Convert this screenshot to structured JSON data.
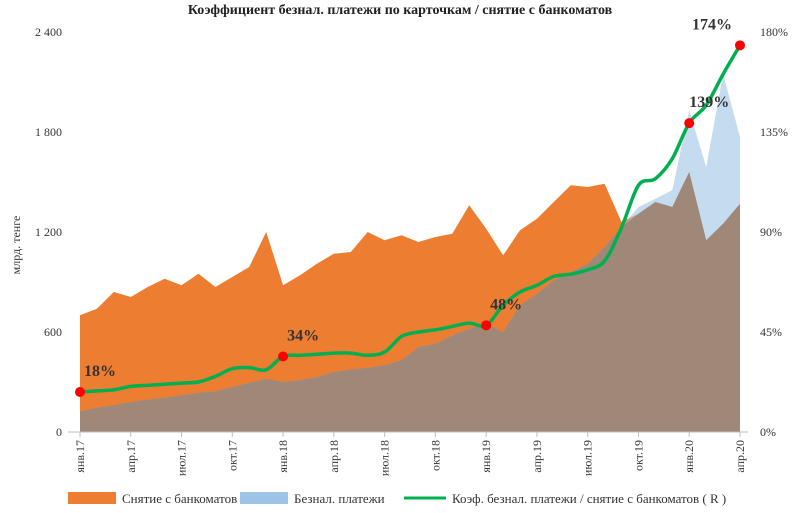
{
  "chart_data": {
    "type": "area",
    "title": "Коэффициент безнал. платежи по карточкам / снятие с банкоматов",
    "ylabel": "млрд. тенге",
    "ylim": [
      0,
      2400
    ],
    "y2lim": [
      0,
      180
    ],
    "y_ticks": [
      "0",
      "600",
      "1 200",
      "1 800",
      "2 400"
    ],
    "y2_ticks": [
      "0%",
      "45%",
      "90%",
      "135%",
      "180%"
    ],
    "x_ticks": [
      "янв.17",
      "апр.17",
      "июл.17",
      "окт.17",
      "янв.18",
      "апр.18",
      "июл.18",
      "окт.18",
      "янв.19",
      "апр.19",
      "июл.19",
      "окт.19",
      "янв.20",
      "апр.20"
    ],
    "x": [
      "янв.17",
      "фев.17",
      "мар.17",
      "апр.17",
      "май.17",
      "июн.17",
      "июл.17",
      "авг.17",
      "сен.17",
      "окт.17",
      "ноя.17",
      "дек.17",
      "янв.18",
      "фев.18",
      "мар.18",
      "апр.18",
      "май.18",
      "июн.18",
      "июл.18",
      "авг.18",
      "сен.18",
      "окт.18",
      "ноя.18",
      "дек.18",
      "янв.19",
      "фев.19",
      "мар.19",
      "апр.19",
      "май.19",
      "июн.19",
      "июл.19",
      "авг.19",
      "сен.19",
      "окт.19",
      "ноя.19",
      "дек.19",
      "янв.20",
      "фев.20",
      "мар.20",
      "апр.20"
    ],
    "series": [
      {
        "name": "Снятие с банкоматов",
        "axis": "left",
        "color": "#ed7d31",
        "values": [
          700,
          740,
          840,
          810,
          870,
          920,
          880,
          950,
          870,
          930,
          990,
          1200,
          880,
          940,
          1010,
          1070,
          1080,
          1200,
          1150,
          1180,
          1140,
          1170,
          1190,
          1360,
          1220,
          1060,
          1210,
          1280,
          1380,
          1480,
          1470,
          1490,
          1260,
          1310,
          1380,
          1350,
          1560,
          1150,
          1250,
          1370
        ]
      },
      {
        "name": "Безнал. платежи",
        "axis": "left",
        "color": "#9dc3e6",
        "values": [
          125,
          145,
          160,
          180,
          195,
          205,
          220,
          235,
          245,
          270,
          295,
          320,
          300,
          310,
          330,
          360,
          375,
          385,
          400,
          430,
          510,
          530,
          580,
          620,
          650,
          600,
          760,
          830,
          910,
          960,
          1010,
          1110,
          1230,
          1350,
          1400,
          1450,
          1930,
          1590,
          2150,
          1770
        ]
      },
      {
        "name": "Коэф. безнал. платежи / снятие с банкоматов ( R )",
        "axis": "right",
        "color": "#00b050",
        "values": [
          18,
          18.5,
          19,
          20.5,
          21,
          21.5,
          22,
          22.5,
          25,
          28.5,
          29,
          28,
          34,
          34.5,
          35,
          35.5,
          35.5,
          34.5,
          36,
          43,
          45,
          46,
          47.5,
          49,
          48,
          57,
          63,
          66,
          70,
          71,
          73,
          77,
          92,
          111,
          114,
          123,
          139,
          147,
          161,
          174
        ]
      }
    ],
    "annotations": [
      {
        "label": "18%",
        "index": 0
      },
      {
        "label": "34%",
        "index": 12
      },
      {
        "label": "48%",
        "index": 24
      },
      {
        "label": "139%",
        "index": 36
      },
      {
        "label": "174%",
        "index": 39
      }
    ],
    "marker_color": "#ff0000",
    "legend": "bottom"
  }
}
